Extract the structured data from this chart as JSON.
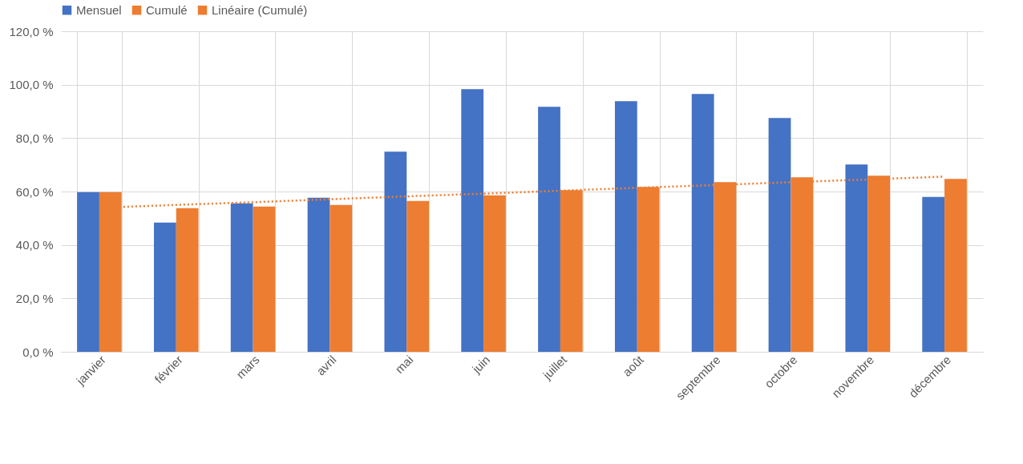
{
  "chart_data": {
    "type": "bar",
    "categories": [
      "janvier",
      "février",
      "mars",
      "avril",
      "mai",
      "juin",
      "juillet",
      "août",
      "septembre",
      "octobre",
      "novembre",
      "décembre"
    ],
    "series": [
      {
        "name": "Mensuel",
        "color": "#4472c4",
        "values": [
          59.8,
          48.4,
          55.6,
          57.7,
          74.9,
          98.3,
          91.7,
          93.8,
          96.5,
          87.5,
          70.1,
          58.0
        ]
      },
      {
        "name": "Cumulé",
        "color": "#ed7d31",
        "values": [
          59.8,
          53.8,
          54.4,
          55.0,
          56.5,
          58.6,
          60.5,
          61.7,
          63.5,
          65.3,
          65.9,
          64.7
        ]
      },
      {
        "name": "Linéaire (Cumulé)",
        "type": "line",
        "line_style": "dotted",
        "color": "#ed7d31",
        "values": [
          53.9,
          55.0,
          56.0,
          57.1,
          58.2,
          59.2,
          60.3,
          61.4,
          62.4,
          63.5,
          64.5,
          65.6
        ]
      }
    ],
    "ylim": [
      0,
      120
    ],
    "yticks": [
      {
        "value": 0,
        "label": "0,0 %"
      },
      {
        "value": 20,
        "label": "20,0 %"
      },
      {
        "value": 40,
        "label": "40,0 %"
      },
      {
        "value": 60,
        "label": "60,0 %"
      },
      {
        "value": 80,
        "label": "80,0 %"
      },
      {
        "value": 100,
        "label": "100,0 %"
      },
      {
        "value": 120,
        "label": "120,0 %"
      }
    ],
    "grid": true,
    "legend": "top"
  }
}
